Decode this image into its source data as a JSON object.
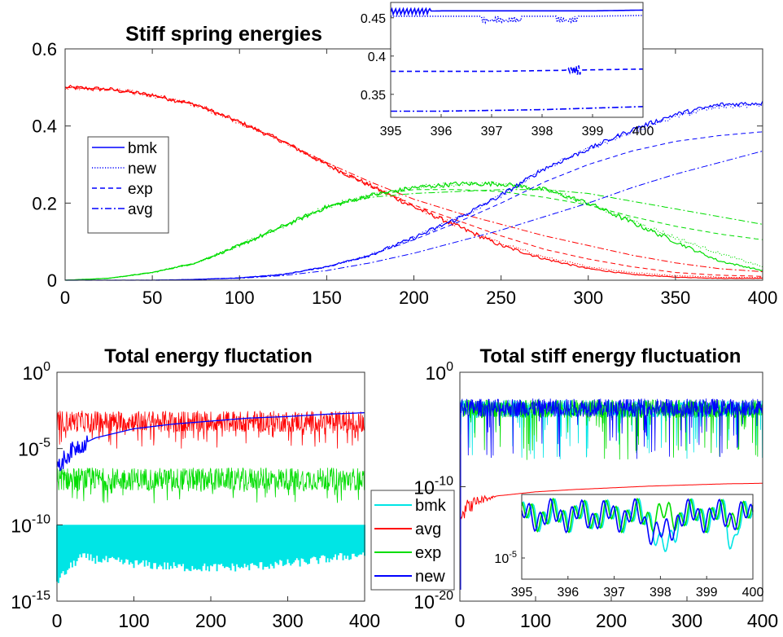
{
  "chart_data": [
    {
      "type": "line",
      "title": "Stiff spring energies",
      "xlim": [
        0,
        400
      ],
      "ylim": [
        0,
        0.6
      ],
      "xticks": [
        "0",
        "50",
        "100",
        "150",
        "200",
        "250",
        "300",
        "350",
        "400"
      ],
      "yticks": [
        "0",
        "0.2",
        "0.4",
        "0.6"
      ],
      "grid": false,
      "legend": {
        "placement": "upper-left",
        "entries": [
          {
            "label": "bmk",
            "style": "solid"
          },
          {
            "label": "new",
            "style": "dotted"
          },
          {
            "label": "exp",
            "style": "dashed"
          },
          {
            "label": "avg",
            "style": "dashdot"
          }
        ]
      },
      "colors": {
        "spring1": "#ff0000",
        "spring2": "#00dd00",
        "spring3": "#0000ff"
      },
      "x": [
        0,
        25,
        50,
        75,
        100,
        125,
        150,
        175,
        200,
        225,
        250,
        275,
        300,
        325,
        350,
        375,
        400
      ],
      "series": [
        {
          "spring": "spring1",
          "method": "bmk",
          "values": [
            0.5,
            0.495,
            0.48,
            0.455,
            0.41,
            0.36,
            0.3,
            0.245,
            0.19,
            0.14,
            0.09,
            0.055,
            0.03,
            0.015,
            0.008,
            0.005,
            0.005
          ]
        },
        {
          "spring": "spring1",
          "method": "new",
          "values": [
            0.5,
            0.495,
            0.48,
            0.455,
            0.41,
            0.36,
            0.3,
            0.245,
            0.19,
            0.14,
            0.095,
            0.06,
            0.035,
            0.02,
            0.012,
            0.008,
            0.007
          ]
        },
        {
          "spring": "spring1",
          "method": "exp",
          "values": [
            0.5,
            0.495,
            0.48,
            0.455,
            0.41,
            0.36,
            0.3,
            0.245,
            0.195,
            0.155,
            0.115,
            0.08,
            0.055,
            0.035,
            0.02,
            0.013,
            0.01
          ]
        },
        {
          "spring": "spring1",
          "method": "avg",
          "values": [
            0.5,
            0.495,
            0.48,
            0.455,
            0.41,
            0.36,
            0.305,
            0.255,
            0.21,
            0.175,
            0.145,
            0.115,
            0.09,
            0.065,
            0.045,
            0.03,
            0.022
          ]
        },
        {
          "spring": "spring2",
          "method": "bmk",
          "values": [
            0,
            0.005,
            0.02,
            0.045,
            0.09,
            0.14,
            0.19,
            0.22,
            0.24,
            0.25,
            0.25,
            0.235,
            0.2,
            0.15,
            0.1,
            0.05,
            0.025
          ]
        },
        {
          "spring": "spring2",
          "method": "new",
          "values": [
            0,
            0.005,
            0.02,
            0.045,
            0.09,
            0.14,
            0.19,
            0.22,
            0.24,
            0.25,
            0.25,
            0.235,
            0.2,
            0.155,
            0.11,
            0.07,
            0.035
          ]
        },
        {
          "spring": "spring2",
          "method": "exp",
          "values": [
            0,
            0.005,
            0.02,
            0.045,
            0.09,
            0.14,
            0.19,
            0.22,
            0.235,
            0.235,
            0.23,
            0.215,
            0.195,
            0.165,
            0.14,
            0.12,
            0.105
          ]
        },
        {
          "spring": "spring2",
          "method": "avg",
          "values": [
            0,
            0.005,
            0.02,
            0.045,
            0.09,
            0.14,
            0.19,
            0.215,
            0.225,
            0.23,
            0.235,
            0.235,
            0.225,
            0.205,
            0.185,
            0.165,
            0.145
          ]
        },
        {
          "spring": "spring3",
          "method": "bmk",
          "values": [
            0,
            0,
            0,
            0.002,
            0.006,
            0.015,
            0.035,
            0.065,
            0.11,
            0.16,
            0.22,
            0.29,
            0.34,
            0.39,
            0.43,
            0.455,
            0.46
          ]
        },
        {
          "spring": "spring3",
          "method": "new",
          "values": [
            0,
            0,
            0,
            0.002,
            0.006,
            0.015,
            0.035,
            0.065,
            0.11,
            0.16,
            0.22,
            0.29,
            0.34,
            0.385,
            0.425,
            0.45,
            0.455
          ]
        },
        {
          "spring": "spring3",
          "method": "exp",
          "values": [
            0,
            0,
            0,
            0.002,
            0.006,
            0.015,
            0.035,
            0.065,
            0.105,
            0.15,
            0.2,
            0.255,
            0.3,
            0.335,
            0.36,
            0.375,
            0.385
          ]
        },
        {
          "spring": "spring3",
          "method": "avg",
          "values": [
            0,
            0,
            0,
            0.002,
            0.005,
            0.012,
            0.025,
            0.045,
            0.07,
            0.1,
            0.13,
            0.165,
            0.2,
            0.24,
            0.275,
            0.305,
            0.335
          ]
        }
      ],
      "inset": {
        "xlim": [
          395,
          400
        ],
        "ylim": [
          0.32,
          0.47
        ],
        "xticks": [
          "395",
          "396",
          "397",
          "398",
          "399",
          "400"
        ],
        "yticks": [
          "0.35",
          "0.4",
          "0.45"
        ],
        "x": [
          395,
          396,
          397,
          398,
          399,
          400
        ],
        "series": [
          {
            "method": "bmk",
            "values": [
              0.458,
              0.459,
              0.459,
              0.459,
              0.459,
              0.46
            ]
          },
          {
            "method": "new",
            "values": [
              0.452,
              0.452,
              0.452,
              0.452,
              0.452,
              0.453
            ]
          },
          {
            "method": "exp",
            "values": [
              0.38,
              0.38,
              0.38,
              0.381,
              0.382,
              0.383
            ]
          },
          {
            "method": "avg",
            "values": [
              0.328,
              0.328,
              0.329,
              0.33,
              0.332,
              0.334
            ]
          }
        ]
      }
    },
    {
      "type": "line",
      "title": "Total energy fluctation",
      "yscale": "log",
      "xlim": [
        0,
        400
      ],
      "ylim_exponent": [
        -15,
        0
      ],
      "xticks": [
        "0",
        "100",
        "200",
        "300",
        "400"
      ],
      "yticks": [
        {
          "base": "10",
          "exp": "0"
        },
        {
          "base": "10",
          "exp": "-5"
        },
        {
          "base": "10",
          "exp": "-10"
        },
        {
          "base": "10",
          "exp": "-15"
        }
      ],
      "grid": false,
      "legend": {
        "placement": "lower-right",
        "entries": [
          {
            "label": "bmk",
            "color": "#00e5e5"
          },
          {
            "label": "avg",
            "color": "#ff0000"
          },
          {
            "label": "exp",
            "color": "#00dd00"
          },
          {
            "label": "new",
            "color": "#0000ff"
          }
        ]
      },
      "series": [
        {
          "name": "bmk",
          "color": "#00e5e5",
          "log10_mean": -10.4,
          "log10_low": -12.8
        },
        {
          "name": "avg",
          "color": "#ff0000",
          "log10_mean": -3.5,
          "log10_low": -5.0
        },
        {
          "name": "exp",
          "color": "#00dd00",
          "log10_mean": -7.3,
          "log10_low": -8.6
        },
        {
          "name": "new",
          "x": [
            0,
            10,
            25,
            50,
            100,
            150,
            200,
            250,
            300,
            350,
            400
          ],
          "log10_values": [
            -6.5,
            -5.6,
            -4.9,
            -4.3,
            -3.7,
            -3.4,
            -3.2,
            -3.0,
            -2.9,
            -2.75,
            -2.65
          ],
          "color": "#0000ff"
        }
      ]
    },
    {
      "type": "line",
      "title": "Total stiff energy fluctuation",
      "yscale": "log",
      "xlim": [
        0,
        400
      ],
      "ylim_exponent": [
        -20,
        0
      ],
      "xticks": [
        "0",
        "100",
        "200",
        "300",
        "400"
      ],
      "yticks": [
        {
          "base": "10",
          "exp": "0"
        },
        {
          "base": "10",
          "exp": "-10"
        },
        {
          "base": "10",
          "exp": "-20"
        }
      ],
      "grid": false,
      "series": [
        {
          "name": "bmk",
          "color": "#00e5e5",
          "log10_mean": -3.2
        },
        {
          "name": "exp",
          "color": "#00dd00",
          "log10_mean": -3.2
        },
        {
          "name": "new",
          "color": "#0000ff",
          "log10_mean": -3.1
        },
        {
          "name": "avg",
          "color": "#ff0000",
          "x": [
            0,
            10,
            25,
            50,
            100,
            150,
            200,
            250,
            300,
            350,
            400
          ],
          "log10_values": [
            -12.5,
            -11.8,
            -11.2,
            -10.8,
            -10.45,
            -10.25,
            -10.1,
            -9.95,
            -9.85,
            -9.75,
            -9.7
          ]
        }
      ],
      "inset": {
        "xlim": [
          395,
          400
        ],
        "xticks": [
          "395",
          "396",
          "397",
          "398",
          "399",
          "400"
        ],
        "yticks": [
          {
            "base": "10",
            "exp": "-5"
          }
        ],
        "log10_range": [
          -6.0,
          -2.0
        ]
      }
    }
  ]
}
